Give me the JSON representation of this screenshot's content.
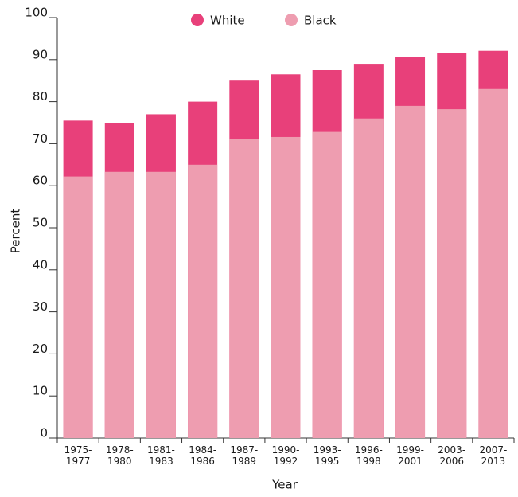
{
  "chart_data": {
    "type": "bar",
    "x_label": "Year",
    "y_label": "Percent",
    "categories": [
      "1975-\n1977",
      "1978-\n1980",
      "1981-\n1983",
      "1984-\n1986",
      "1987-\n1989",
      "1990-\n1992",
      "1993-\n1995",
      "1996-\n1998",
      "1999-\n2001",
      "2003-\n2006",
      "2007-\n2013"
    ],
    "series": [
      {
        "name": "White",
        "color": "#e8407a",
        "values": [
          75.5,
          75,
          77,
          80,
          85,
          86.5,
          87.5,
          89,
          90.7,
          91.6,
          92.1
        ]
      },
      {
        "name": "Black",
        "color": "#ee9db0",
        "values": [
          62.2,
          63.3,
          63.3,
          65,
          71.2,
          71.6,
          72.8,
          76,
          79,
          78.2,
          83
        ]
      }
    ],
    "ylim": [
      0,
      100
    ],
    "yticks": [
      0,
      10,
      20,
      30,
      40,
      50,
      60,
      70,
      80,
      90,
      100
    ]
  }
}
